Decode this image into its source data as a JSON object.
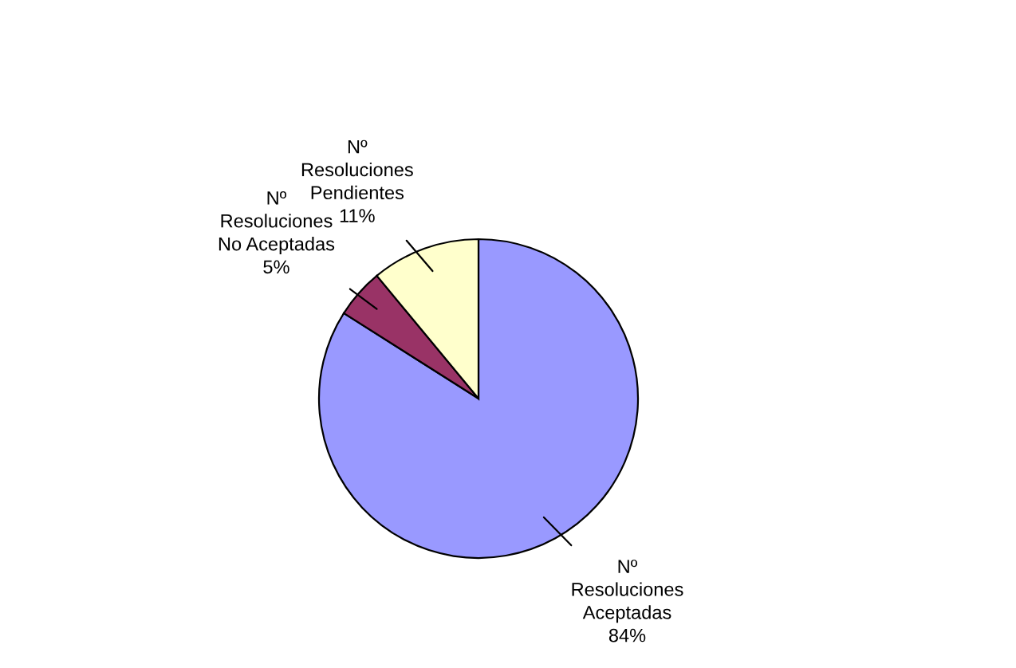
{
  "chart_data": {
    "type": "pie",
    "categories": [
      "Nº\nResoluciones\nAceptadas",
      "Nº\nResoluciones\nNo Aceptadas",
      "Nº\nResoluciones\nPendientes"
    ],
    "values": [
      84,
      5,
      11
    ],
    "value_labels": [
      "84%",
      "5%",
      "11%"
    ],
    "colors": [
      "#9999ff",
      "#993366",
      "#ffffcc"
    ]
  }
}
